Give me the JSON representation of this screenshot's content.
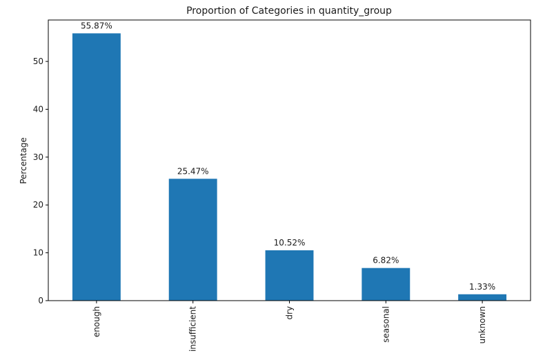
{
  "chart_data": {
    "type": "bar",
    "title": "Proportion of Categories in quantity_group",
    "xlabel": "",
    "ylabel": "Percentage",
    "categories": [
      "enough",
      "insufficient",
      "dry",
      "seasonal",
      "unknown"
    ],
    "values": [
      55.87,
      25.47,
      10.52,
      6.82,
      1.33
    ],
    "data_labels": [
      "55.87%",
      "25.47%",
      "10.52%",
      "6.82%",
      "1.33%"
    ],
    "yticks": [
      0,
      10,
      20,
      30,
      40,
      50
    ],
    "ylim": [
      0,
      58.66
    ],
    "grid": false,
    "bar_color": "#1f77b4"
  }
}
